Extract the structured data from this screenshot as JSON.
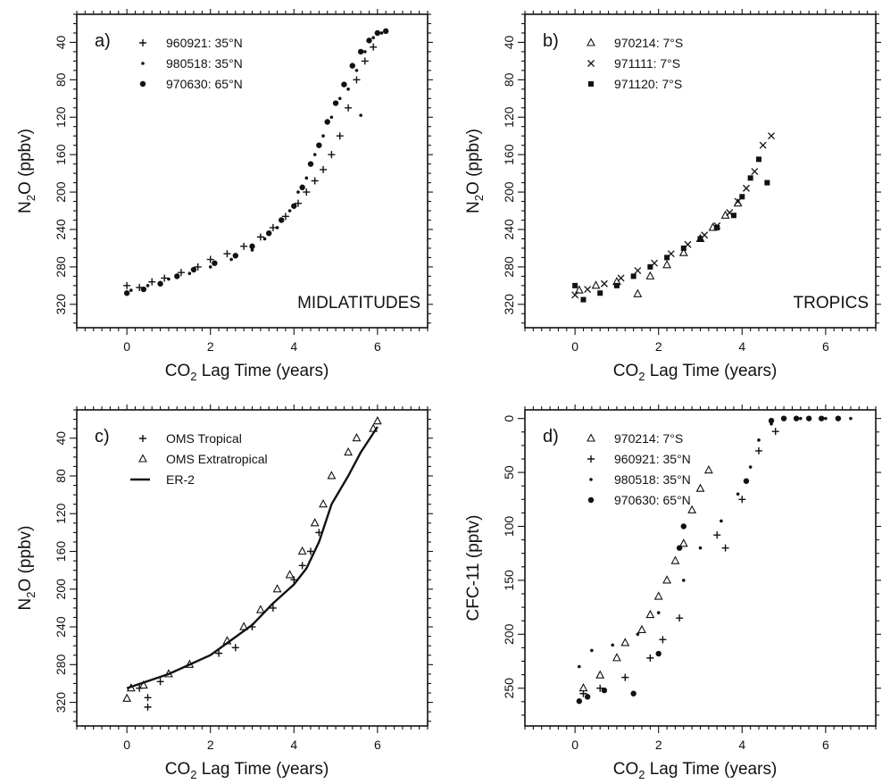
{
  "chart_data": [
    {
      "type": "scatter",
      "panel_label": "a)",
      "annotation": "MIDLATITUDES",
      "xlabel_main": "CO",
      "xlabel_sub": "2",
      "xlabel_rest": " Lag Time (years)",
      "ylabel_main": "N",
      "ylabel_sub": "2",
      "ylabel_rest": "O (ppbv)",
      "xlim": [
        -1.2,
        7.2
      ],
      "ylim": [
        345,
        10
      ],
      "y_inverted": true,
      "xticks": [
        0,
        2,
        4,
        6
      ],
      "yticks": [
        40,
        80,
        120,
        160,
        200,
        240,
        280,
        320
      ],
      "legend_position": "top-left",
      "series": [
        {
          "name": "960921:  35°N",
          "marker": "plus",
          "points": [
            [
              0.0,
              300
            ],
            [
              0.3,
              302
            ],
            [
              0.6,
              296
            ],
            [
              0.9,
              292
            ],
            [
              1.3,
              286
            ],
            [
              1.7,
              280
            ],
            [
              2.0,
              272
            ],
            [
              2.4,
              266
            ],
            [
              2.8,
              258
            ],
            [
              3.2,
              248
            ],
            [
              3.5,
              238
            ],
            [
              3.8,
              226
            ],
            [
              4.1,
              212
            ],
            [
              4.3,
              200
            ],
            [
              4.5,
              188
            ],
            [
              4.7,
              176
            ],
            [
              4.9,
              160
            ],
            [
              5.1,
              140
            ],
            [
              5.3,
              110
            ],
            [
              5.5,
              80
            ],
            [
              5.7,
              60
            ],
            [
              5.9,
              45
            ]
          ]
        },
        {
          "name": "980518:  35°N",
          "marker": "small-dot",
          "points": [
            [
              0.1,
              305
            ],
            [
              0.5,
              300
            ],
            [
              1.0,
              293
            ],
            [
              1.5,
              287
            ],
            [
              2.0,
              280
            ],
            [
              2.5,
              272
            ],
            [
              3.0,
              262
            ],
            [
              3.3,
              250
            ],
            [
              3.6,
              238
            ],
            [
              3.9,
              220
            ],
            [
              4.1,
              200
            ],
            [
              4.3,
              185
            ],
            [
              4.5,
              160
            ],
            [
              4.7,
              140
            ],
            [
              4.9,
              120
            ],
            [
              5.1,
              100
            ],
            [
              5.3,
              90
            ],
            [
              5.5,
              70
            ],
            [
              5.7,
              50
            ],
            [
              5.9,
              35
            ],
            [
              6.1,
              30
            ],
            [
              5.6,
              118
            ]
          ]
        },
        {
          "name": "970630:  65°N",
          "marker": "dot",
          "points": [
            [
              0.0,
              308
            ],
            [
              0.4,
              304
            ],
            [
              0.8,
              298
            ],
            [
              1.2,
              290
            ],
            [
              1.6,
              283
            ],
            [
              2.1,
              276
            ],
            [
              2.6,
              268
            ],
            [
              3.0,
              258
            ],
            [
              3.4,
              244
            ],
            [
              3.7,
              230
            ],
            [
              4.0,
              215
            ],
            [
              4.2,
              195
            ],
            [
              4.4,
              170
            ],
            [
              4.6,
              150
            ],
            [
              4.8,
              125
            ],
            [
              5.0,
              105
            ],
            [
              5.2,
              85
            ],
            [
              5.4,
              65
            ],
            [
              5.6,
              50
            ],
            [
              5.8,
              38
            ],
            [
              6.0,
              30
            ],
            [
              6.2,
              28
            ]
          ]
        }
      ]
    },
    {
      "type": "scatter",
      "panel_label": "b)",
      "annotation": "TROPICS",
      "xlabel_main": "CO",
      "xlabel_sub": "2",
      "xlabel_rest": " Lag Time (years)",
      "ylabel_main": "N",
      "ylabel_sub": "2",
      "ylabel_rest": "O (ppbv)",
      "xlim": [
        -1.2,
        7.2
      ],
      "ylim": [
        345,
        10
      ],
      "y_inverted": true,
      "xticks": [
        0,
        2,
        4,
        6
      ],
      "yticks": [
        40,
        80,
        120,
        160,
        200,
        240,
        280,
        320
      ],
      "legend_position": "top-left",
      "series": [
        {
          "name": "970214:  7°S",
          "marker": "triangle",
          "points": [
            [
              0.1,
              305
            ],
            [
              0.5,
              300
            ],
            [
              1.0,
              296
            ],
            [
              1.5,
              309
            ],
            [
              1.8,
              290
            ],
            [
              2.2,
              278
            ],
            [
              2.6,
              265
            ],
            [
              3.0,
              250
            ],
            [
              3.3,
              238
            ],
            [
              3.6,
              225
            ],
            [
              3.9,
              212
            ]
          ]
        },
        {
          "name": "971111:  7°S",
          "marker": "cross",
          "points": [
            [
              0.0,
              310
            ],
            [
              0.3,
              304
            ],
            [
              0.7,
              298
            ],
            [
              1.1,
              292
            ],
            [
              1.5,
              284
            ],
            [
              1.9,
              276
            ],
            [
              2.3,
              266
            ],
            [
              2.7,
              256
            ],
            [
              3.1,
              246
            ],
            [
              3.4,
              236
            ],
            [
              3.7,
              222
            ],
            [
              3.9,
              210
            ],
            [
              4.1,
              196
            ],
            [
              4.3,
              178
            ],
            [
              4.5,
              150
            ],
            [
              4.7,
              140
            ]
          ]
        },
        {
          "name": "971120:  7°S",
          "marker": "square-dot",
          "points": [
            [
              0.0,
              300
            ],
            [
              0.2,
              315
            ],
            [
              0.6,
              308
            ],
            [
              1.0,
              300
            ],
            [
              1.4,
              290
            ],
            [
              1.8,
              280
            ],
            [
              2.2,
              270
            ],
            [
              2.6,
              260
            ],
            [
              3.0,
              250
            ],
            [
              3.4,
              238
            ],
            [
              3.8,
              225
            ],
            [
              4.0,
              205
            ],
            [
              4.2,
              185
            ],
            [
              4.4,
              165
            ],
            [
              4.6,
              190
            ]
          ]
        }
      ]
    },
    {
      "type": "scatter",
      "panel_label": "c)",
      "xlabel_main": "CO",
      "xlabel_sub": "2",
      "xlabel_rest": " Lag Time (years)",
      "ylabel_main": "N",
      "ylabel_sub": "2",
      "ylabel_rest": "O (ppbv)",
      "xlim": [
        -1.2,
        7.2
      ],
      "ylim": [
        345,
        10
      ],
      "y_inverted": true,
      "xticks": [
        0,
        2,
        4,
        6
      ],
      "yticks": [
        40,
        80,
        120,
        160,
        200,
        240,
        280,
        320
      ],
      "legend_position": "top-left",
      "series": [
        {
          "name": "OMS Tropical",
          "marker": "plus",
          "points": [
            [
              0.5,
              325
            ],
            [
              0.5,
              315
            ],
            [
              0.3,
              305
            ],
            [
              0.8,
              298
            ],
            [
              2.2,
              268
            ],
            [
              2.6,
              262
            ],
            [
              3.0,
              240
            ],
            [
              3.5,
              220
            ],
            [
              4.0,
              190
            ],
            [
              4.2,
              175
            ],
            [
              4.4,
              160
            ],
            [
              4.6,
              140
            ]
          ]
        },
        {
          "name": "OMS Extratropical",
          "marker": "triangle",
          "points": [
            [
              0.0,
              316
            ],
            [
              0.1,
              305
            ],
            [
              0.4,
              302
            ],
            [
              1.0,
              290
            ],
            [
              1.5,
              280
            ],
            [
              2.4,
              255
            ],
            [
              2.8,
              240
            ],
            [
              3.2,
              222
            ],
            [
              3.6,
              200
            ],
            [
              3.9,
              185
            ],
            [
              4.2,
              160
            ],
            [
              4.5,
              130
            ],
            [
              4.7,
              110
            ],
            [
              4.9,
              80
            ],
            [
              5.3,
              55
            ],
            [
              5.5,
              40
            ],
            [
              5.9,
              30
            ],
            [
              6.0,
              22
            ]
          ]
        },
        {
          "name": "ER-2",
          "marker": "line",
          "points": [
            [
              0.0,
              305
            ],
            [
              1.0,
              290
            ],
            [
              2.0,
              270
            ],
            [
              3.0,
              238
            ],
            [
              3.5,
              215
            ],
            [
              4.0,
              195
            ],
            [
              4.3,
              178
            ],
            [
              4.6,
              150
            ],
            [
              4.9,
              110
            ],
            [
              5.3,
              80
            ],
            [
              5.6,
              55
            ],
            [
              6.0,
              28
            ]
          ]
        }
      ]
    },
    {
      "type": "scatter",
      "panel_label": "d)",
      "xlabel_main": "CO",
      "xlabel_sub": "2",
      "xlabel_rest": " Lag Time (years)",
      "ylabel_main": "CFC-11 (pptv)",
      "ylabel_sub": "",
      "ylabel_rest": "",
      "xlim": [
        -1.2,
        7.2
      ],
      "ylim": [
        285,
        -8
      ],
      "y_inverted": true,
      "xticks": [
        0,
        2,
        4,
        6
      ],
      "yticks": [
        0,
        50,
        100,
        150,
        200,
        250
      ],
      "legend_position": "top-left",
      "series": [
        {
          "name": "970214:  7°S",
          "marker": "triangle",
          "points": [
            [
              0.2,
              250
            ],
            [
              0.6,
              238
            ],
            [
              1.0,
              222
            ],
            [
              1.2,
              208
            ],
            [
              1.6,
              196
            ],
            [
              1.8,
              182
            ],
            [
              2.0,
              165
            ],
            [
              2.2,
              150
            ],
            [
              2.4,
              132
            ],
            [
              2.6,
              116
            ],
            [
              2.8,
              85
            ],
            [
              3.0,
              65
            ],
            [
              3.2,
              48
            ]
          ]
        },
        {
          "name": "960921:  35°N",
          "marker": "plus",
          "points": [
            [
              0.2,
              255
            ],
            [
              0.6,
              250
            ],
            [
              1.2,
              240
            ],
            [
              1.8,
              222
            ],
            [
              2.1,
              205
            ],
            [
              2.5,
              185
            ],
            [
              3.4,
              108
            ],
            [
              3.6,
              120
            ],
            [
              4.0,
              75
            ],
            [
              4.4,
              30
            ],
            [
              4.8,
              12
            ]
          ]
        },
        {
          "name": "980518:  35°N",
          "marker": "small-dot",
          "points": [
            [
              0.1,
              230
            ],
            [
              0.4,
              215
            ],
            [
              0.9,
              210
            ],
            [
              1.5,
              200
            ],
            [
              2.0,
              180
            ],
            [
              2.6,
              150
            ],
            [
              3.0,
              120
            ],
            [
              3.5,
              95
            ],
            [
              3.9,
              70
            ],
            [
              4.2,
              45
            ],
            [
              4.4,
              20
            ],
            [
              4.7,
              5
            ],
            [
              5.4,
              0
            ],
            [
              6.0,
              0
            ],
            [
              6.6,
              0
            ]
          ]
        },
        {
          "name": "970630:  65°N",
          "marker": "dot",
          "points": [
            [
              0.1,
              262
            ],
            [
              0.3,
              258
            ],
            [
              0.7,
              252
            ],
            [
              1.4,
              255
            ],
            [
              2.0,
              218
            ],
            [
              2.5,
              120
            ],
            [
              2.6,
              100
            ],
            [
              4.1,
              58
            ],
            [
              4.7,
              2
            ],
            [
              5.0,
              0
            ],
            [
              5.3,
              0
            ],
            [
              5.6,
              0
            ],
            [
              5.9,
              0
            ],
            [
              6.3,
              0
            ]
          ]
        }
      ]
    }
  ]
}
